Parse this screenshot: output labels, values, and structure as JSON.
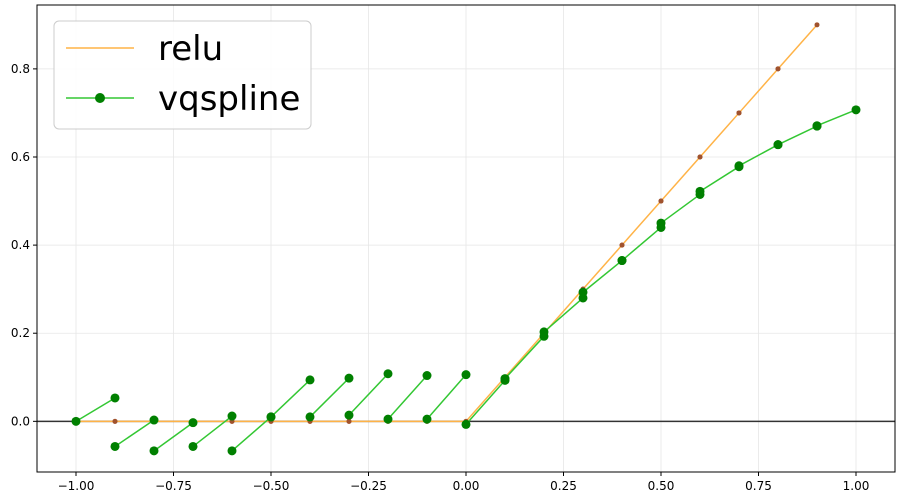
{
  "chart_data": {
    "type": "line",
    "title": "",
    "xlabel": "",
    "ylabel": "",
    "xlim": [
      -1.1,
      1.1
    ],
    "ylim": [
      -0.115,
      0.945
    ],
    "grid": true,
    "legend_position": "top-left",
    "xticks": [
      "−1.00",
      "−0.75",
      "−0.50",
      "−0.25",
      "0.00",
      "0.25",
      "0.50",
      "0.75",
      "1.00"
    ],
    "xtick_values": [
      -1.0,
      -0.75,
      -0.5,
      -0.25,
      0.0,
      0.25,
      0.5,
      0.75,
      1.0
    ],
    "yticks": [
      "0.0",
      "0.2",
      "0.4",
      "0.6",
      "0.8"
    ],
    "ytick_values": [
      0.0,
      0.2,
      0.4,
      0.6,
      0.8
    ],
    "horizontal_reference_line": 0.0,
    "series": [
      {
        "name": "relu",
        "color": "#ffb347",
        "marker_color": "#a0522d",
        "segments": [
          [
            [
              -1.0,
              0.0
            ],
            [
              -0.9,
              0.0
            ]
          ],
          [
            [
              -0.9,
              0.0
            ],
            [
              -0.8,
              0.0
            ]
          ],
          [
            [
              -0.8,
              0.0
            ],
            [
              -0.7,
              0.0
            ]
          ],
          [
            [
              -0.7,
              0.0
            ],
            [
              -0.6,
              0.0
            ]
          ],
          [
            [
              -0.6,
              0.0
            ],
            [
              -0.5,
              0.0
            ]
          ],
          [
            [
              -0.5,
              0.0
            ],
            [
              -0.4,
              0.0
            ]
          ],
          [
            [
              -0.4,
              0.0
            ],
            [
              -0.3,
              0.0
            ]
          ],
          [
            [
              -0.3,
              0.0
            ],
            [
              -0.2,
              0.0
            ]
          ],
          [
            [
              -0.2,
              0.0
            ],
            [
              -0.1,
              0.0
            ]
          ],
          [
            [
              -0.1,
              0.0
            ],
            [
              0.0,
              0.0
            ]
          ],
          [
            [
              0.0,
              0.0
            ],
            [
              0.1,
              0.1
            ]
          ],
          [
            [
              0.1,
              0.1
            ],
            [
              0.2,
              0.2
            ]
          ],
          [
            [
              0.2,
              0.2
            ],
            [
              0.3,
              0.3
            ]
          ],
          [
            [
              0.3,
              0.3
            ],
            [
              0.4,
              0.4
            ]
          ],
          [
            [
              0.4,
              0.4
            ],
            [
              0.5,
              0.5
            ]
          ],
          [
            [
              0.5,
              0.5
            ],
            [
              0.6,
              0.6
            ]
          ],
          [
            [
              0.6,
              0.6
            ],
            [
              0.7,
              0.7
            ]
          ],
          [
            [
              0.7,
              0.7
            ],
            [
              0.8,
              0.8
            ]
          ],
          [
            [
              0.8,
              0.8
            ],
            [
              0.9,
              0.9
            ]
          ]
        ]
      },
      {
        "name": "vqspline",
        "color": "#33c733",
        "marker_color": "#008000",
        "segments": [
          [
            [
              -1.0,
              0.0
            ],
            [
              -0.9,
              0.053
            ]
          ],
          [
            [
              -0.9,
              -0.057
            ],
            [
              -0.8,
              0.003
            ]
          ],
          [
            [
              -0.8,
              -0.067
            ],
            [
              -0.7,
              -0.003
            ]
          ],
          [
            [
              -0.7,
              -0.057
            ],
            [
              -0.6,
              0.012
            ]
          ],
          [
            [
              -0.6,
              -0.067
            ],
            [
              -0.5,
              0.01
            ]
          ],
          [
            [
              -0.5,
              0.01
            ],
            [
              -0.4,
              0.094
            ]
          ],
          [
            [
              -0.4,
              0.01
            ],
            [
              -0.3,
              0.098
            ]
          ],
          [
            [
              -0.3,
              0.014
            ],
            [
              -0.2,
              0.108
            ]
          ],
          [
            [
              -0.2,
              0.005
            ],
            [
              -0.1,
              0.104
            ]
          ],
          [
            [
              -0.1,
              0.005
            ],
            [
              0.0,
              0.106
            ]
          ],
          [
            [
              0.0,
              -0.007
            ],
            [
              0.1,
              0.093
            ]
          ],
          [
            [
              0.1,
              0.097
            ],
            [
              0.2,
              0.193
            ]
          ],
          [
            [
              0.2,
              0.203
            ],
            [
              0.3,
              0.28
            ]
          ],
          [
            [
              0.3,
              0.293
            ],
            [
              0.4,
              0.365
            ]
          ],
          [
            [
              0.4,
              0.365
            ],
            [
              0.5,
              0.44
            ]
          ],
          [
            [
              0.5,
              0.45
            ],
            [
              0.6,
              0.515
            ]
          ],
          [
            [
              0.6,
              0.522
            ],
            [
              0.7,
              0.578
            ]
          ],
          [
            [
              0.7,
              0.58
            ],
            [
              0.8,
              0.628
            ]
          ],
          [
            [
              0.8,
              0.628
            ],
            [
              0.9,
              0.67
            ]
          ],
          [
            [
              0.9,
              0.671
            ],
            [
              1.0,
              0.707
            ]
          ]
        ]
      }
    ]
  }
}
